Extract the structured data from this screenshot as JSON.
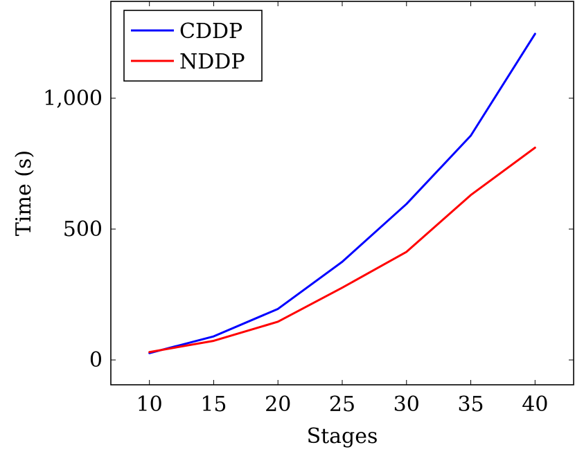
{
  "chart_data": {
    "type": "line",
    "xlabel": "Stages",
    "ylabel": "Time (s)",
    "x": [
      10,
      15,
      20,
      25,
      30,
      35,
      40
    ],
    "xlim": [
      7,
      43
    ],
    "ylim": [
      -95,
      1370
    ],
    "xticks": [
      10,
      15,
      20,
      25,
      30,
      35,
      40
    ],
    "xtick_labels": [
      "10",
      "15",
      "20",
      "25",
      "30",
      "35",
      "40"
    ],
    "yticks": [
      0,
      500,
      1000
    ],
    "ytick_labels": [
      "0",
      "500",
      "1,000"
    ],
    "grid": false,
    "legend_position": "top-left",
    "series": [
      {
        "name": "CDDP",
        "color": "#0000ff",
        "values": [
          26,
          90,
          195,
          375,
          596,
          857,
          1246
        ]
      },
      {
        "name": "NDDP",
        "color": "#ff0000",
        "values": [
          30,
          73,
          146,
          276,
          413,
          630,
          811
        ]
      }
    ]
  }
}
